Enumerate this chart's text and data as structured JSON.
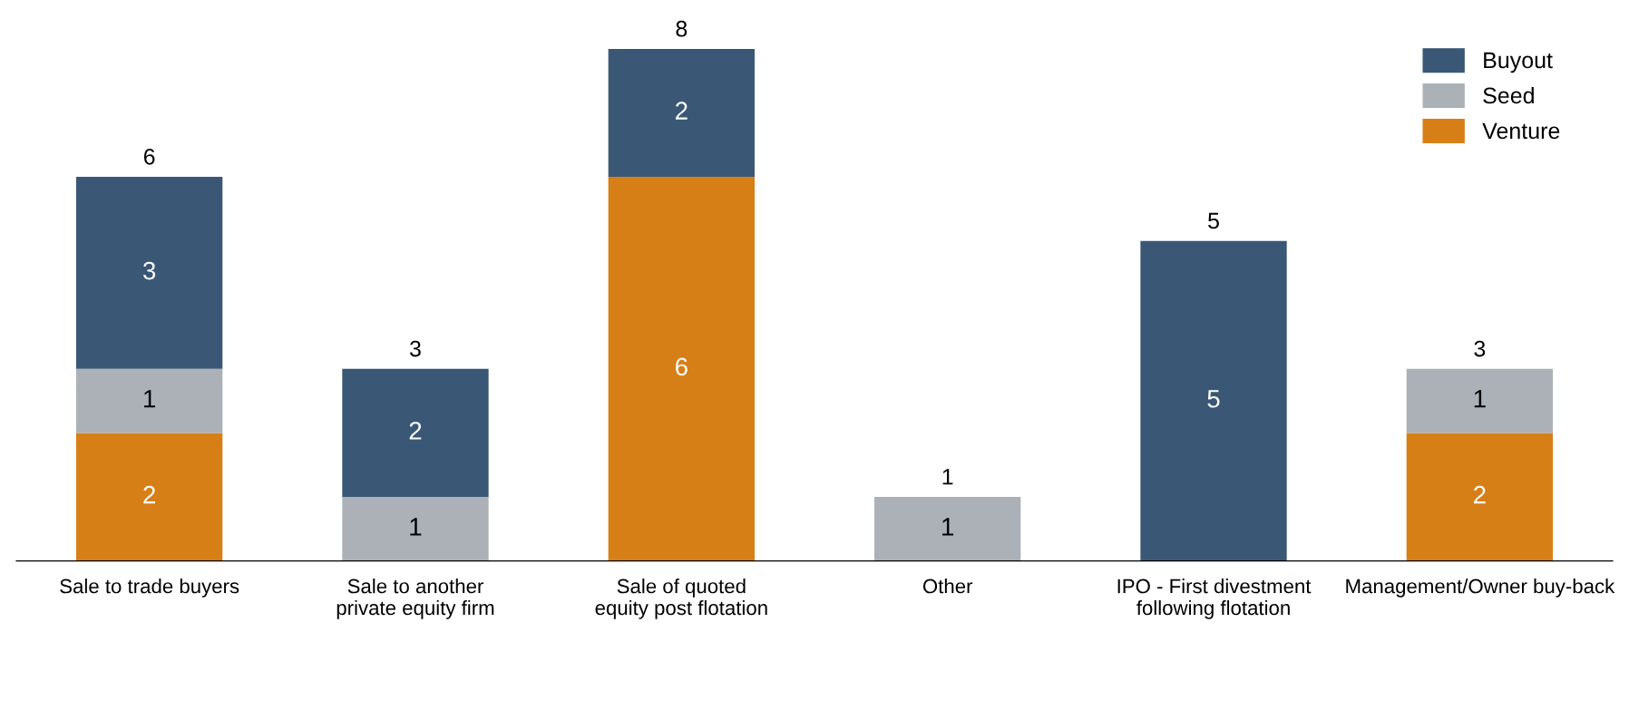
{
  "chart_data": {
    "type": "bar",
    "stacked": true,
    "data_labels": true,
    "legend": "top right",
    "grid": false,
    "categories": [
      "Sale to trade buyers",
      "Sale to another\nprivate equity firm",
      "Sale of quoted\nequity post flotation",
      "Other",
      "IPO - First divestment\nfollowing flotation",
      "Management/Owner buy-back"
    ],
    "series": [
      {
        "name": "Venture",
        "color": "#d77f17",
        "values": [
          2,
          null,
          6,
          null,
          null,
          2
        ]
      },
      {
        "name": "Seed",
        "color": "#abb1b7",
        "values": [
          1,
          1,
          null,
          1,
          null,
          1
        ]
      },
      {
        "name": "Buyout",
        "color": "#3a5875",
        "values": [
          3,
          2,
          2,
          null,
          5,
          null
        ]
      }
    ],
    "totals": [
      "6",
      "3",
      "8",
      "1",
      "5",
      "3"
    ]
  }
}
